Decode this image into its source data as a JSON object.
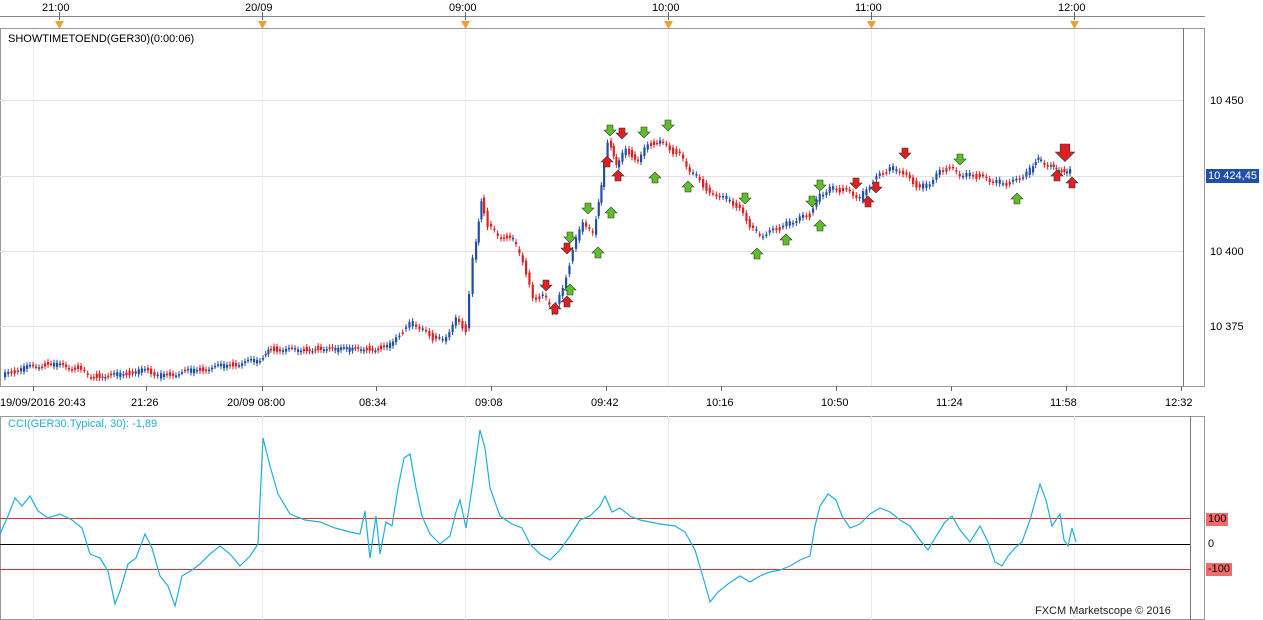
{
  "top_axis": {
    "labels": [
      "21:00",
      "20/09",
      "09:00",
      "10:00",
      "11:00",
      "12:00"
    ]
  },
  "price_panel": {
    "indicator_label": "SHOWTIMETOEND(GER30)(0:00:06)",
    "y_ticks": [
      "10 450",
      "10 400",
      "10 375"
    ],
    "current_price": "10 424,45",
    "accent": "#1f4fa8",
    "up_color": "#1f4fa8",
    "down_color": "#e02020"
  },
  "time_axis": {
    "labels": [
      "19/09/2016 20:43",
      "21:26",
      "20/09 08:00",
      "08:34",
      "09:08",
      "09:42",
      "10:16",
      "10:50",
      "11:24",
      "11:58",
      "12:32"
    ]
  },
  "cci_panel": {
    "legend": "CCI(GER30.Typical, 30): -1,89",
    "line_color": "#1fb0d8",
    "level_high": "100",
    "level_zero": "0",
    "level_low": "-100"
  },
  "watermark": "FXCM Marketscope © 2016",
  "signal_icons": {
    "buy": "green-up-arrow-icon",
    "sell": "red-down-arrow-icon"
  }
}
